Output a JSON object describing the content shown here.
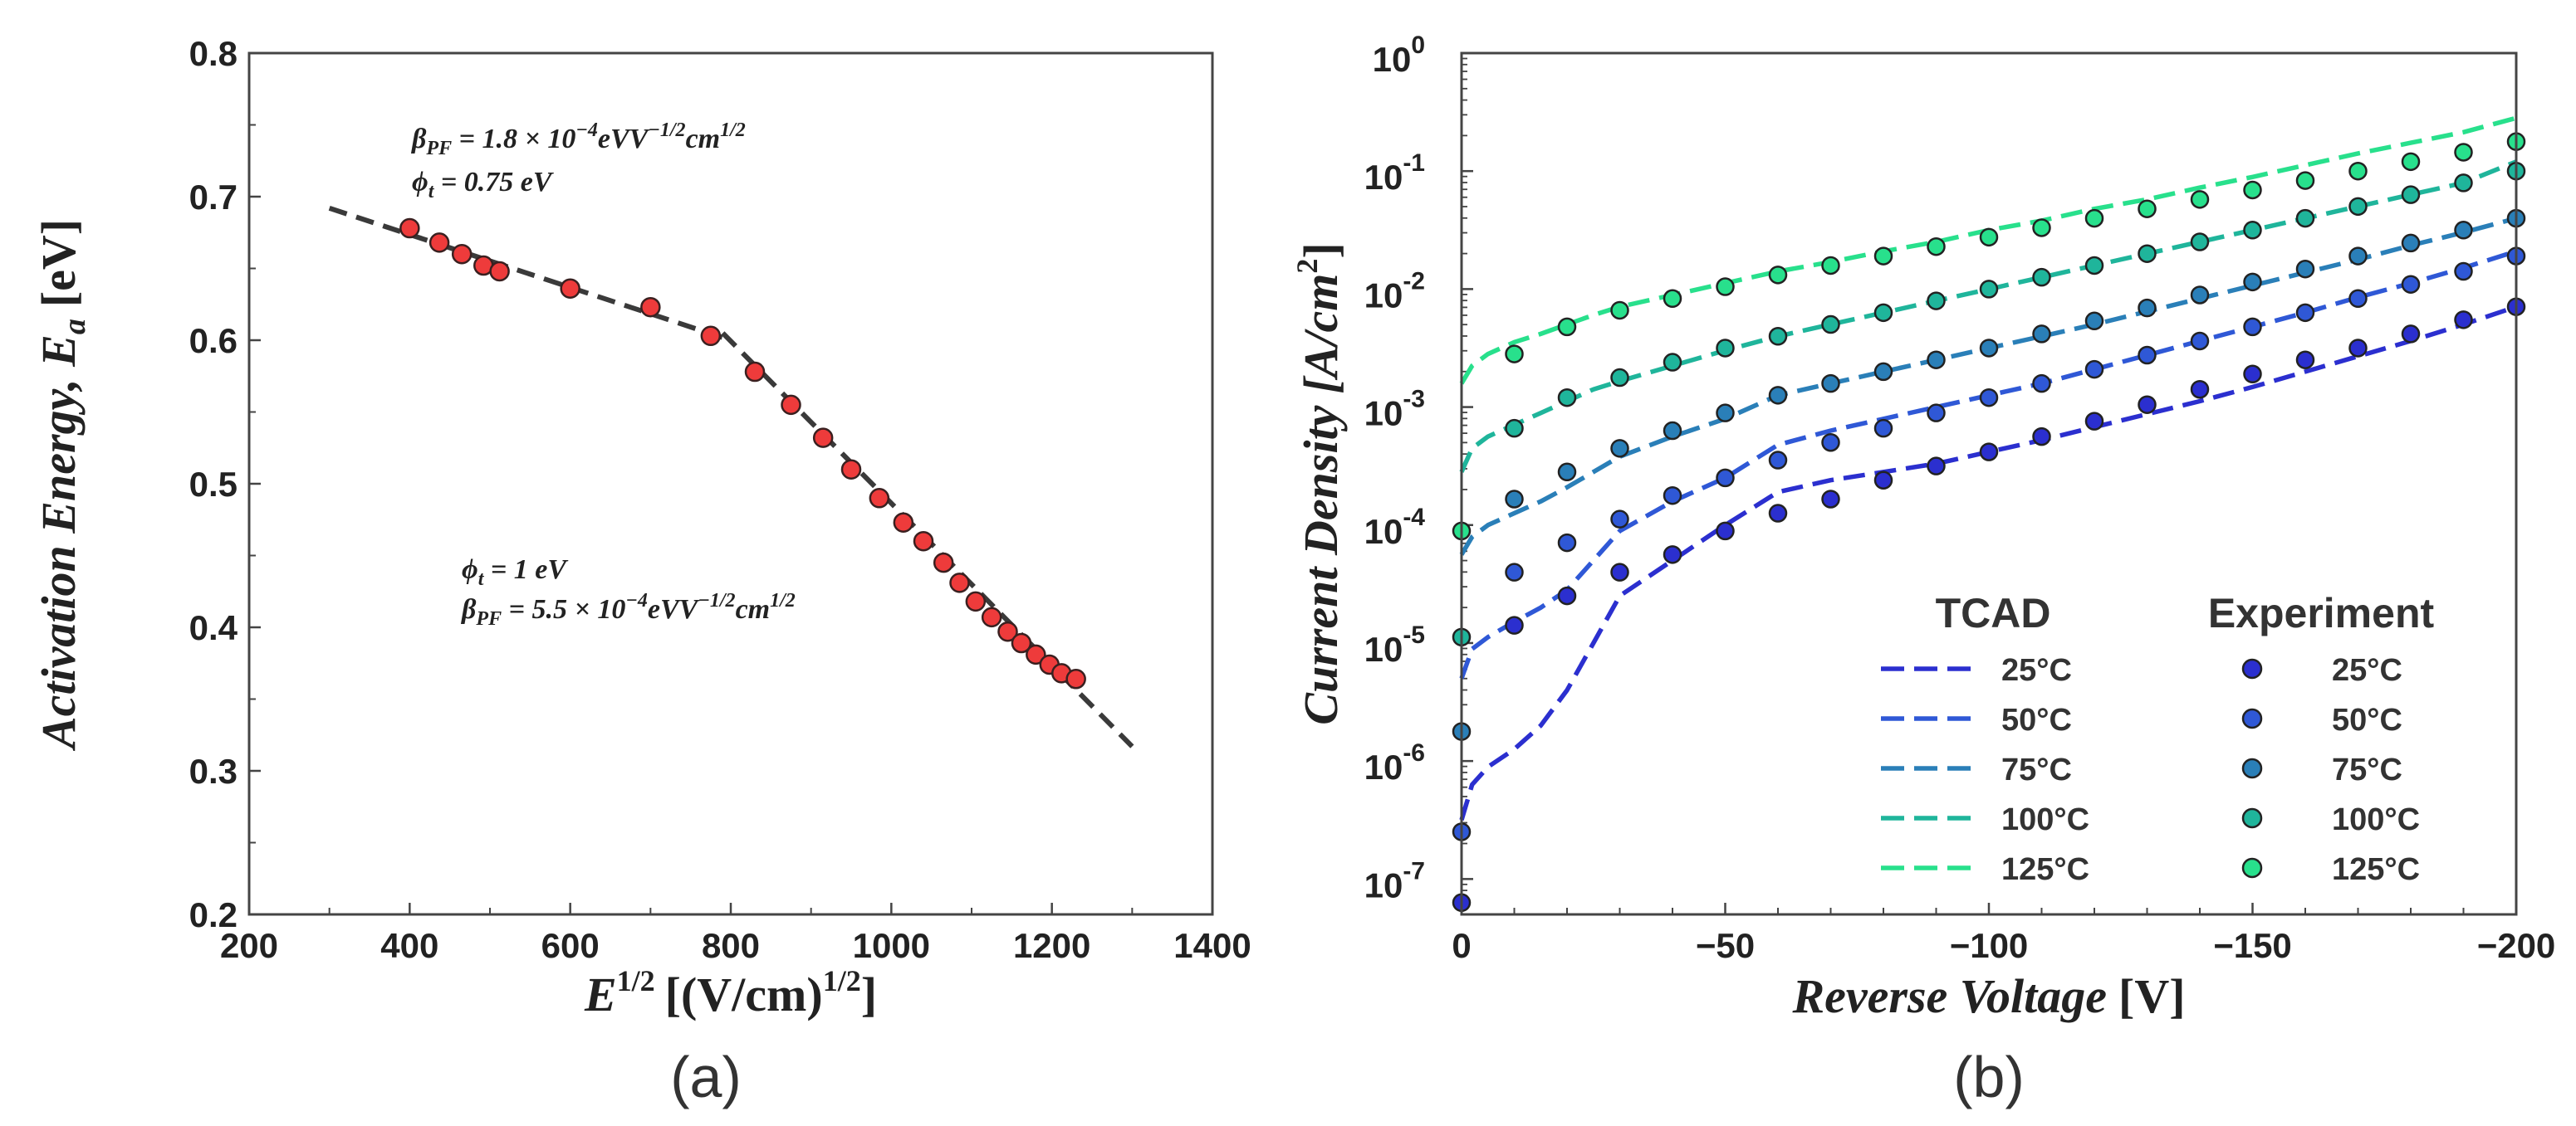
{
  "figure": {
    "panel_a_label": "(a)",
    "panel_b_label": "(b)"
  },
  "chart_data": [
    {
      "type": "scatter",
      "title": "",
      "xlabel_main": "E",
      "xlabel_sup": "1/2",
      "xlabel_units": "[(V/cm)",
      "xlabel_units_sup": "1/2",
      "xlabel_close": "]",
      "ylabel_main": "Activation Energy, E",
      "ylabel_sub": "a",
      "ylabel_units": "[eV]",
      "xlim": [
        200,
        1400
      ],
      "ylim": [
        0.2,
        0.8
      ],
      "xticks": [
        200,
        400,
        600,
        800,
        1000,
        1200,
        1400
      ],
      "xtick_labels": [
        "200",
        "400",
        "600",
        "800",
        "1000",
        "1200",
        "1400"
      ],
      "yticks": [
        0.2,
        0.3,
        0.4,
        0.5,
        0.6,
        0.7,
        0.8
      ],
      "ytick_labels": [
        "0.2",
        "0.3",
        "0.4",
        "0.5",
        "0.6",
        "0.7",
        "0.8"
      ],
      "marker_color": "#ee3b3b",
      "fit_color": "#3a3a3a",
      "points": {
        "x": [
          400,
          437,
          465,
          492,
          512,
          600,
          700,
          775,
          830,
          875,
          915,
          950,
          985,
          1015,
          1040,
          1065,
          1085,
          1105,
          1125,
          1145,
          1162,
          1180,
          1197,
          1212,
          1230
        ],
        "y": [
          0.678,
          0.668,
          0.66,
          0.652,
          0.648,
          0.636,
          0.623,
          0.603,
          0.578,
          0.555,
          0.532,
          0.51,
          0.49,
          0.473,
          0.46,
          0.445,
          0.431,
          0.418,
          0.407,
          0.397,
          0.389,
          0.381,
          0.374,
          0.368,
          0.364
        ]
      },
      "fit_lines": [
        {
          "name": "low-field fit",
          "x": [
            300,
            800
          ],
          "y": [
            0.692,
            0.6
          ]
        },
        {
          "name": "high-field fit",
          "x": [
            790,
            1300
          ],
          "y": [
            0.605,
            0.317
          ]
        }
      ],
      "annotations": [
        {
          "id": "fit1_beta",
          "text_main": "β",
          "text_sub": "PF",
          "text_rest": " = 1.8 × 10",
          "text_exp": "−4",
          "text_units": "eVV",
          "text_units_exp": "−1/2",
          "text_units2": "cm",
          "text_units2_exp": "1/2"
        },
        {
          "id": "fit1_phi",
          "text_main": "ϕ",
          "text_sub": "t",
          "text_rest": " = 0.75 eV"
        },
        {
          "id": "fit2_phi",
          "text_main": "ϕ",
          "text_sub": "t",
          "text_rest": " = 1 eV"
        },
        {
          "id": "fit2_beta",
          "text_main": "β",
          "text_sub": "PF",
          "text_rest": " = 5.5 × 10",
          "text_exp": "−4",
          "text_units": "eVV",
          "text_units_exp": "−1/2",
          "text_units2": "cm",
          "text_units2_exp": "1/2"
        }
      ]
    },
    {
      "type": "line",
      "title": "",
      "xlabel": "Reverse Voltage",
      "xlabel_units": "[V]",
      "ylabel": "Current Density",
      "ylabel_units_open": "[A/cm",
      "ylabel_units_sup": "2",
      "ylabel_units_close": "]",
      "y_scale": "log",
      "xlim": [
        0,
        -200
      ],
      "ylim_log10": [
        -7.3,
        0
      ],
      "xticks": [
        0,
        -50,
        -100,
        -150,
        -200
      ],
      "xtick_labels": [
        "0",
        "−50",
        "−100",
        "−150",
        "−200"
      ],
      "ytick_exponents": [
        -7,
        -6,
        -5,
        -4,
        -3,
        -2,
        -1,
        0
      ],
      "ytick_base": "10",
      "ytick_exp_labels": [
        "-7",
        "-6",
        "-5",
        "-4",
        "-3",
        "-2",
        "-1",
        "0"
      ],
      "legend": {
        "position": "bottom-right",
        "tcad_header": "TCAD",
        "experiment_header": "Experiment"
      },
      "series": [
        {
          "name": "25°C",
          "color": "#2b2fcf",
          "tcad_x": [
            0,
            -2,
            -5,
            -10,
            -15,
            -20,
            -25,
            -30,
            -40,
            -50,
            -60,
            -70,
            -80,
            -90,
            -100,
            -110,
            -120,
            -130,
            -140,
            -150,
            -160,
            -170,
            -180,
            -190,
            -200
          ],
          "tcad_log10": [
            -6.5,
            -6.2,
            -6.05,
            -5.9,
            -5.7,
            -5.4,
            -5.0,
            -4.6,
            -4.3,
            -4.0,
            -3.72,
            -3.62,
            -3.55,
            -3.48,
            -3.38,
            -3.28,
            -3.17,
            -3.06,
            -2.95,
            -2.83,
            -2.7,
            -2.57,
            -2.44,
            -2.3,
            -2.15
          ],
          "exp_x": [
            0,
            -10,
            -20,
            -30,
            -40,
            -50,
            -60,
            -70,
            -80,
            -90,
            -100,
            -110,
            -120,
            -130,
            -140,
            -150,
            -160,
            -170,
            -180,
            -190,
            -200
          ],
          "exp_log10": [
            -7.2,
            -4.85,
            -4.6,
            -4.4,
            -4.25,
            -4.05,
            -3.9,
            -3.78,
            -3.62,
            -3.5,
            -3.38,
            -3.25,
            -3.12,
            -2.98,
            -2.85,
            -2.72,
            -2.6,
            -2.5,
            -2.38,
            -2.26,
            -2.15
          ]
        },
        {
          "name": "50°C",
          "color": "#2f58d6",
          "tcad_x": [
            0,
            -2,
            -5,
            -10,
            -15,
            -20,
            -25,
            -30,
            -40,
            -50,
            -60,
            -70,
            -80,
            -90,
            -100,
            -110,
            -120,
            -130,
            -140,
            -150,
            -160,
            -170,
            -180,
            -190,
            -200
          ],
          "tcad_log10": [
            -5.3,
            -5.05,
            -4.95,
            -4.82,
            -4.7,
            -4.55,
            -4.3,
            -4.05,
            -3.8,
            -3.6,
            -3.32,
            -3.2,
            -3.1,
            -3.0,
            -2.9,
            -2.8,
            -2.68,
            -2.56,
            -2.44,
            -2.32,
            -2.2,
            -2.07,
            -1.95,
            -1.82,
            -1.68
          ],
          "exp_x": [
            0,
            -10,
            -20,
            -30,
            -40,
            -50,
            -60,
            -70,
            -80,
            -90,
            -100,
            -110,
            -120,
            -130,
            -140,
            -150,
            -160,
            -170,
            -180,
            -190,
            -200
          ],
          "exp_log10": [
            -6.6,
            -4.4,
            -4.15,
            -3.95,
            -3.75,
            -3.6,
            -3.45,
            -3.3,
            -3.18,
            -3.05,
            -2.92,
            -2.8,
            -2.68,
            -2.56,
            -2.44,
            -2.32,
            -2.2,
            -2.08,
            -1.96,
            -1.85,
            -1.72
          ]
        },
        {
          "name": "75°C",
          "color": "#2a7fb8",
          "tcad_x": [
            0,
            -2,
            -5,
            -10,
            -15,
            -20,
            -25,
            -30,
            -40,
            -50,
            -60,
            -70,
            -80,
            -90,
            -100,
            -110,
            -120,
            -130,
            -140,
            -150,
            -160,
            -170,
            -180,
            -190,
            -200
          ],
          "tcad_log10": [
            -4.25,
            -4.1,
            -4.0,
            -3.9,
            -3.8,
            -3.68,
            -3.55,
            -3.42,
            -3.25,
            -3.1,
            -2.9,
            -2.8,
            -2.7,
            -2.6,
            -2.5,
            -2.4,
            -2.3,
            -2.19,
            -2.08,
            -1.97,
            -1.86,
            -1.75,
            -1.63,
            -1.52,
            -1.4
          ],
          "exp_x": [
            0,
            -10,
            -20,
            -30,
            -40,
            -50,
            -60,
            -70,
            -80,
            -90,
            -100,
            -110,
            -120,
            -130,
            -140,
            -150,
            -160,
            -170,
            -180,
            -190,
            -200
          ],
          "exp_log10": [
            -5.75,
            -3.78,
            -3.55,
            -3.35,
            -3.2,
            -3.05,
            -2.9,
            -2.8,
            -2.7,
            -2.6,
            -2.5,
            -2.38,
            -2.27,
            -2.16,
            -2.05,
            -1.94,
            -1.83,
            -1.72,
            -1.61,
            -1.5,
            -1.4
          ]
        },
        {
          "name": "100°C",
          "color": "#1fb59b",
          "tcad_x": [
            0,
            -2,
            -5,
            -10,
            -15,
            -20,
            -25,
            -30,
            -40,
            -50,
            -60,
            -70,
            -80,
            -90,
            -100,
            -110,
            -120,
            -130,
            -140,
            -150,
            -160,
            -170,
            -180,
            -190,
            -200
          ],
          "tcad_log10": [
            -3.55,
            -3.35,
            -3.25,
            -3.15,
            -3.05,
            -2.95,
            -2.85,
            -2.78,
            -2.65,
            -2.52,
            -2.4,
            -2.3,
            -2.2,
            -2.1,
            -2.0,
            -1.9,
            -1.8,
            -1.7,
            -1.6,
            -1.5,
            -1.4,
            -1.3,
            -1.2,
            -1.1,
            -0.92
          ],
          "exp_x": [
            0,
            -10,
            -20,
            -30,
            -40,
            -50,
            -60,
            -70,
            -80,
            -90,
            -100,
            -110,
            -120,
            -130,
            -140,
            -150,
            -160,
            -170,
            -180,
            -190,
            -200
          ],
          "exp_log10": [
            -4.95,
            -3.18,
            -2.92,
            -2.75,
            -2.62,
            -2.5,
            -2.4,
            -2.3,
            -2.2,
            -2.1,
            -2.0,
            -1.9,
            -1.8,
            -1.7,
            -1.6,
            -1.5,
            -1.4,
            -1.3,
            -1.2,
            -1.1,
            -1.0
          ]
        },
        {
          "name": "125°C",
          "color": "#28e08c",
          "tcad_x": [
            0,
            -2,
            -5,
            -10,
            -15,
            -20,
            -25,
            -30,
            -40,
            -50,
            -60,
            -70,
            -80,
            -90,
            -100,
            -110,
            -120,
            -130,
            -140,
            -150,
            -160,
            -170,
            -180,
            -190,
            -200
          ],
          "tcad_log10": [
            -2.8,
            -2.65,
            -2.55,
            -2.45,
            -2.38,
            -2.3,
            -2.22,
            -2.15,
            -2.05,
            -1.95,
            -1.85,
            -1.77,
            -1.68,
            -1.6,
            -1.5,
            -1.42,
            -1.32,
            -1.24,
            -1.14,
            -1.05,
            -0.95,
            -0.85,
            -0.76,
            -0.67,
            -0.55
          ],
          "exp_x": [
            0,
            -10,
            -20,
            -30,
            -40,
            -50,
            -60,
            -70,
            -80,
            -90,
            -100,
            -110,
            -120,
            -130,
            -140,
            -150,
            -160,
            -170,
            -180,
            -190,
            -200
          ],
          "exp_log10": [
            -4.05,
            -2.55,
            -2.32,
            -2.18,
            -2.08,
            -1.98,
            -1.88,
            -1.8,
            -1.72,
            -1.64,
            -1.56,
            -1.48,
            -1.4,
            -1.32,
            -1.24,
            -1.16,
            -1.08,
            -1.0,
            -0.92,
            -0.84,
            -0.75
          ]
        }
      ]
    }
  ]
}
